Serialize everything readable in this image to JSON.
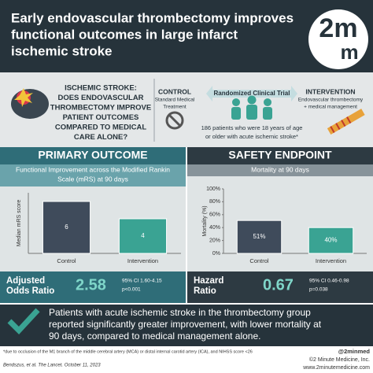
{
  "header": {
    "title": [
      "Early endovascular thrombectomy improves",
      "functional outcomes in large infarct",
      "ischemic stroke"
    ],
    "logo": {
      "top": "2m",
      "bottom": "m"
    }
  },
  "study": {
    "question": [
      "ISCHEMIC STROKE:",
      "DOES ENDOVASCULAR",
      "THROMBECTOMY IMPROVE",
      "PATIENT OUTCOMES",
      "COMPARED TO MEDICAL",
      "CARE ALONE?"
    ],
    "control": {
      "title": "CONTROL",
      "text": [
        "Standard Medical",
        "Treatment"
      ]
    },
    "design": "Randomized Clinical Trial",
    "population": [
      "186 patients who were 18 years of age",
      "or older with acute ischemic stroke*"
    ],
    "intervention": {
      "title": "INTERVENTION",
      "text": [
        "Endovascular thrombectomy",
        "+ medical management"
      ]
    }
  },
  "primary_outcome": {
    "heading": "PRIMARY OUTCOME",
    "chart_data": {
      "type": "bar",
      "title": [
        "Functional Improvement across the Modified Rankin",
        "Scale (mRS) at 90 days"
      ],
      "ylabel": "Median mRS score",
      "categories": [
        "Control",
        "Intervention"
      ],
      "values": [
        6,
        4
      ],
      "colors": [
        "#3f4b5b",
        "#3aa393"
      ],
      "ylim": [
        0,
        7
      ]
    },
    "stat": {
      "label": [
        "Adjusted",
        "Odds Ratio"
      ],
      "value": "2.58",
      "ci": "95% CI 1.60-4.15",
      "p": "p<0.001"
    }
  },
  "safety_endpoint": {
    "heading": "SAFETY ENDPOINT",
    "chart_data": {
      "type": "bar",
      "title": [
        "Mortality at 90 days"
      ],
      "ylabel": "Mortality (%)",
      "categories": [
        "Control",
        "Intervention"
      ],
      "values": [
        51,
        40
      ],
      "value_labels": [
        "51%",
        "40%"
      ],
      "colors": [
        "#3f4b5b",
        "#3aa393"
      ],
      "ylim": [
        0,
        100
      ],
      "yticks": [
        {
          "value": 0,
          "label": "0%"
        },
        {
          "value": 20,
          "label": "20%"
        },
        {
          "value": 40,
          "label": "40%"
        },
        {
          "value": 60,
          "label": "60%"
        },
        {
          "value": 80,
          "label": "80%"
        },
        {
          "value": 100,
          "label": "100%"
        }
      ]
    },
    "stat": {
      "label": [
        "Hazard",
        "Ratio"
      ],
      "value": "0.67",
      "ci": "95% CI 0.46-0.98",
      "p": "p=0.038"
    }
  },
  "conclusion": [
    "Patients with acute ischemic stroke in the thrombectomy group",
    "reported significantly greater improvement, with lower mortality at",
    "90 days, compared to medical management alone."
  ],
  "footer": {
    "footnote": "*due to occlusion of the M1 branch of the middle cerebral artery (MCA) or distal internal carotid artery (ICA), and NIHSS score <26",
    "citation": "Bendszus, et al. The Lancet. October 11, 2023",
    "handle": "@2minmed",
    "copyright": "©2 Minute Medicine, Inc.",
    "website": "www.2minutemedicine.com"
  }
}
